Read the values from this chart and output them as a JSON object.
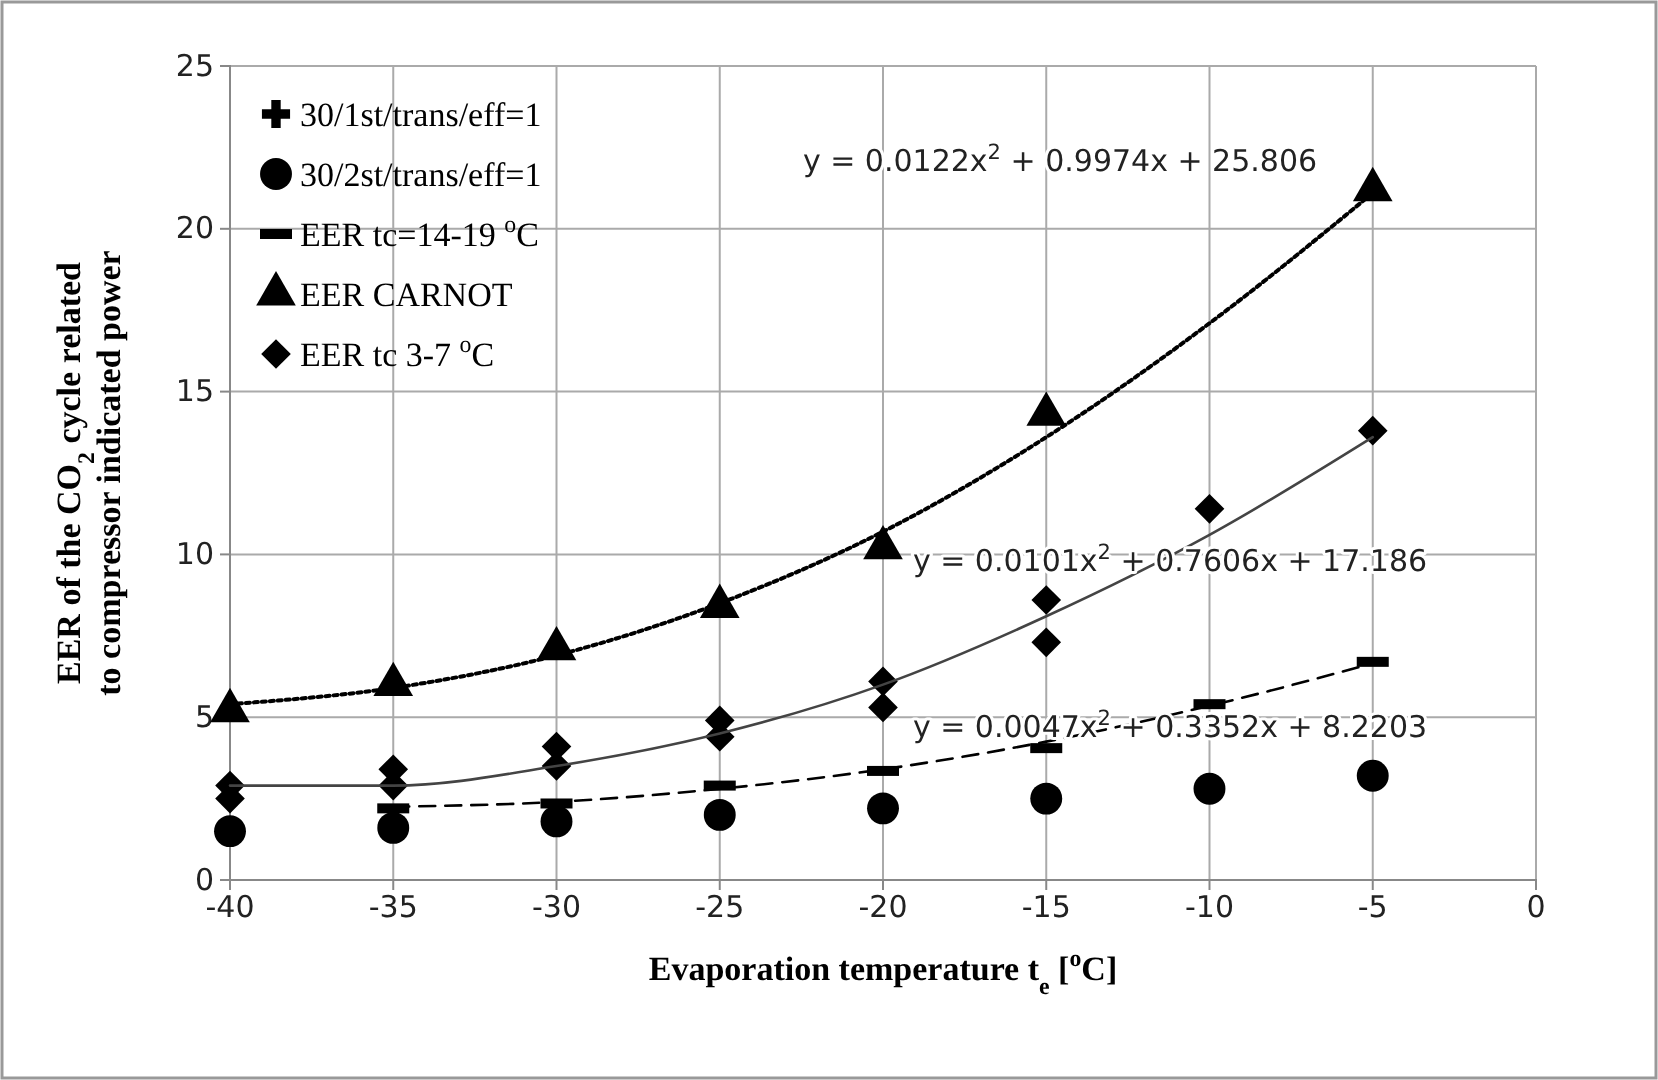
{
  "chart_data": {
    "type": "scatter",
    "xlabel": "Evaporation temperature t$_{e}$ [$^{o}$C]",
    "ylabel": "EER of the CO$_{2}$ cycle related to compressor indicated power",
    "xlim": [
      -40,
      0
    ],
    "xticks": [
      -40,
      -35,
      -30,
      -25,
      -20,
      -15,
      -10,
      -5,
      0
    ],
    "ylim": [
      0,
      25
    ],
    "yticks": [
      0,
      5,
      10,
      15,
      20,
      25
    ],
    "grid": true,
    "legend": "top left",
    "series": [
      {
        "name": "30/1st/trans/eff=1",
        "color": "#000000",
        "marker": "cross"
      },
      {
        "name": "30/2st/trans/eff=1",
        "color": "#000000",
        "marker": "circle",
        "x": [
          -40,
          -35,
          -30,
          -25,
          -20,
          -15,
          -10,
          -5
        ],
        "values": [
          1.5,
          1.6,
          1.8,
          2.0,
          2.2,
          2.5,
          2.8,
          3.2
        ]
      },
      {
        "name": "EER tc=14-19 $^{o}$C",
        "color": "#000000",
        "marker": "square",
        "x": [
          -35,
          -30,
          -25,
          -20,
          -15,
          -10,
          -5
        ],
        "values": [
          2.2,
          2.35,
          2.9,
          3.35,
          4.05,
          5.4,
          6.7
        ]
      },
      {
        "name": "EER CARNOT",
        "color": "#000000",
        "marker": "triangle",
        "x": [
          -40,
          -35,
          -30,
          -25,
          -20,
          -15,
          -5
        ],
        "values": [
          5.2,
          6.0,
          7.1,
          8.4,
          10.2,
          14.3,
          21.2
        ]
      },
      {
        "name": "EER tc 3-7 $^{o}$C",
        "color": "#000000",
        "marker": "diamond",
        "x": [
          -40,
          -40,
          -35,
          -35,
          -30,
          -30,
          -25,
          -25,
          -20,
          -20,
          -15,
          -15,
          -10,
          -5
        ],
        "values": [
          2.9,
          2.5,
          3.4,
          2.9,
          4.1,
          3.5,
          4.9,
          4.4,
          6.1,
          5.3,
          8.6,
          7.3,
          11.4,
          13.8
        ]
      },
      {
        "type": "line",
        "color": "#000000",
        "line_style": "dotted",
        "marker": "none",
        "x": [
          -40,
          -35,
          -30,
          -25,
          -20,
          -15,
          -10,
          -5
        ],
        "values": [
          5.4,
          5.9,
          6.9,
          8.5,
          10.7,
          13.6,
          17.1,
          21.1
        ]
      },
      {
        "type": "line",
        "color": "#444444",
        "line_style": "solid",
        "marker": "none",
        "x": [
          -40,
          -35,
          -30,
          -25,
          -20,
          -15,
          -10,
          -5
        ],
        "values": [
          2.9,
          2.9,
          3.5,
          4.5,
          6.0,
          8.1,
          10.6,
          13.6
        ]
      },
      {
        "type": "line",
        "color": "#000000",
        "line_style": "dashed",
        "marker": "none",
        "x": [
          -35,
          -30,
          -25,
          -20,
          -15,
          -10,
          -5
        ],
        "values": [
          2.25,
          2.4,
          2.8,
          3.4,
          4.25,
          5.35,
          6.65
        ]
      }
    ],
    "annotations": [
      "y = 0.0122x$^{2}$ + 0.9974x + 25.806",
      "y = 0.0101x$^{2}$ + 0.7606x + 17.186",
      "y = 0.0047x$^{2}$ + 0.3352x + 8.2203"
    ]
  }
}
